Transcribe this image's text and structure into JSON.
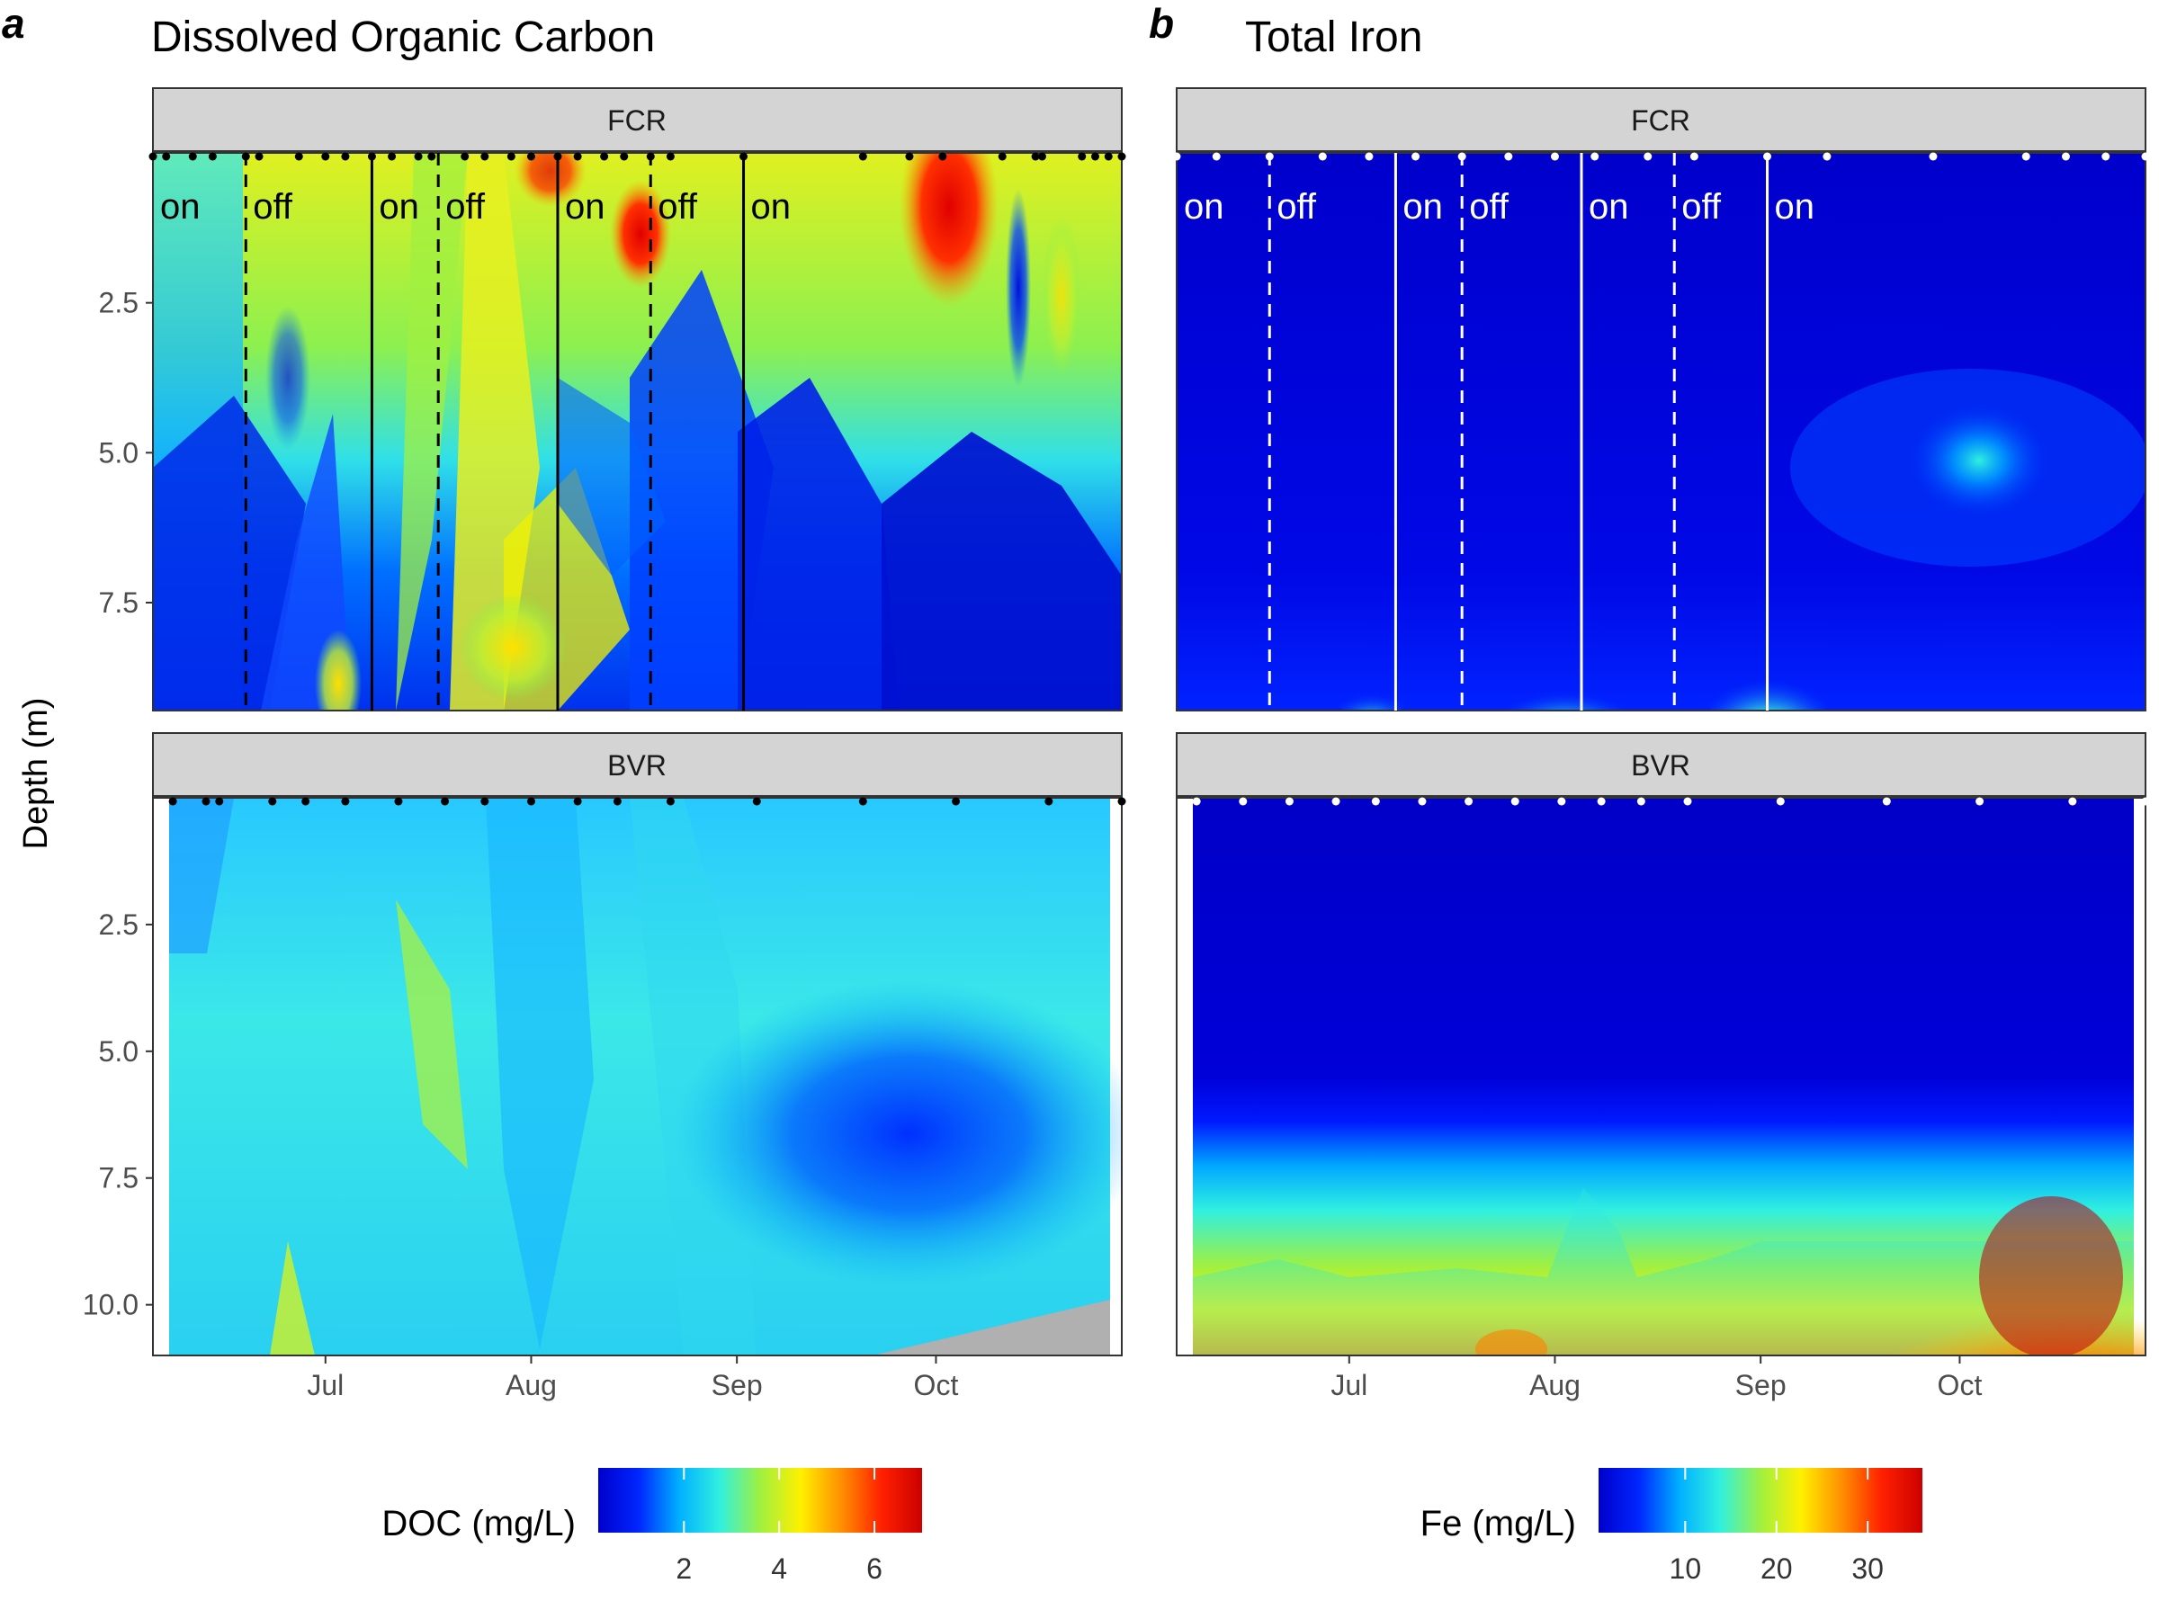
{
  "chart_data": [
    {
      "type": "heatmap",
      "panel_letter": "a",
      "title": "Dissolved Organic Carbon",
      "ylabel": "Depth (m)",
      "legend": {
        "title": "DOC (mg/L)",
        "ticks": [
          2,
          4,
          6
        ],
        "range": [
          0.2,
          7.0
        ],
        "position": "bottom"
      },
      "colors": [
        "#0000cc",
        "#0026ff",
        "#00b0ff",
        "#30f0e0",
        "#a0f040",
        "#fff000",
        "#ff9000",
        "#ff2000",
        "#cc0000"
      ],
      "x_axis": {
        "ticks": [
          "Jul",
          "Aug",
          "Sep",
          "Oct"
        ],
        "range": [
          "2019-06-05",
          "2019-10-29"
        ]
      },
      "facets": [
        {
          "name": "FCR",
          "ylim": [
            0,
            9.3
          ],
          "y_ticks": [
            2.5,
            5.0,
            7.5
          ],
          "sample_dates": [
            "2019-06-05",
            "2019-06-07",
            "2019-06-11",
            "2019-06-14",
            "2019-06-19",
            "2019-06-21",
            "2019-06-27",
            "2019-07-01",
            "2019-07-04",
            "2019-07-08",
            "2019-07-11",
            "2019-07-15",
            "2019-07-17",
            "2019-07-22",
            "2019-07-25",
            "2019-07-29",
            "2019-08-01",
            "2019-08-05",
            "2019-08-08",
            "2019-08-12",
            "2019-08-15",
            "2019-08-19",
            "2019-08-22",
            "2019-09-02",
            "2019-09-20",
            "2019-09-27",
            "2019-10-02",
            "2019-10-11",
            "2019-10-16",
            "2019-10-17",
            "2019-10-23",
            "2019-10-25",
            "2019-10-27",
            "2019-10-29"
          ],
          "oxygenation_events": [
            {
              "date": "2019-06-05",
              "label": "on",
              "line": "none"
            },
            {
              "date": "2019-06-19",
              "label": "off",
              "line": "dashed"
            },
            {
              "date": "2019-07-08",
              "label": "on",
              "line": "solid"
            },
            {
              "date": "2019-07-18",
              "label": "off",
              "line": "dashed"
            },
            {
              "date": "2019-08-05",
              "label": "on",
              "line": "solid"
            },
            {
              "date": "2019-08-19",
              "label": "off",
              "line": "dashed"
            },
            {
              "date": "2019-09-02",
              "label": "on",
              "line": "solid"
            }
          ]
        },
        {
          "name": "BVR",
          "ylim": [
            0,
            11.0
          ],
          "y_ticks": [
            2.5,
            5.0,
            7.5,
            10.0
          ],
          "sample_dates": [
            "2019-06-08",
            "2019-06-13",
            "2019-06-15",
            "2019-06-23",
            "2019-06-28",
            "2019-07-04",
            "2019-07-12",
            "2019-07-19",
            "2019-07-25",
            "2019-08-01",
            "2019-08-08",
            "2019-08-14",
            "2019-08-22",
            "2019-09-04",
            "2019-09-20",
            "2019-10-04",
            "2019-10-18",
            "2019-10-29"
          ],
          "oxygenation_events": []
        }
      ]
    },
    {
      "type": "heatmap",
      "panel_letter": "b",
      "title": "Total Iron",
      "ylabel": "",
      "legend": {
        "title": "Fe (mg/L)",
        "ticks": [
          10,
          20,
          30
        ],
        "range": [
          0.5,
          36.0
        ],
        "position": "bottom"
      },
      "colors": [
        "#0000cc",
        "#0026ff",
        "#00b0ff",
        "#30f0e0",
        "#a0f040",
        "#fff000",
        "#ff9000",
        "#ff2000",
        "#cc0000"
      ],
      "x_axis": {
        "ticks": [
          "Jul",
          "Aug",
          "Sep",
          "Oct"
        ],
        "range": [
          "2019-06-05",
          "2019-10-29"
        ]
      },
      "facets": [
        {
          "name": "FCR",
          "ylim": [
            0,
            9.3
          ],
          "y_ticks": [],
          "sample_dates": [
            "2019-06-05",
            "2019-06-11",
            "2019-06-19",
            "2019-06-27",
            "2019-07-04",
            "2019-07-11",
            "2019-07-18",
            "2019-07-25",
            "2019-08-01",
            "2019-08-07",
            "2019-08-15",
            "2019-08-22",
            "2019-09-02",
            "2019-09-11",
            "2019-09-27",
            "2019-10-11",
            "2019-10-17",
            "2019-10-23",
            "2019-10-29"
          ],
          "oxygenation_events": [
            {
              "date": "2019-06-05",
              "label": "on",
              "line": "none"
            },
            {
              "date": "2019-06-19",
              "label": "off",
              "line": "dashed"
            },
            {
              "date": "2019-07-08",
              "label": "on",
              "line": "solid"
            },
            {
              "date": "2019-07-18",
              "label": "off",
              "line": "dashed"
            },
            {
              "date": "2019-08-05",
              "label": "on",
              "line": "solid"
            },
            {
              "date": "2019-08-19",
              "label": "off",
              "line": "dashed"
            },
            {
              "date": "2019-09-02",
              "label": "on",
              "line": "solid"
            }
          ]
        },
        {
          "name": "BVR",
          "ylim": [
            0,
            11.0
          ],
          "y_ticks": [],
          "sample_dates": [
            "2019-06-08",
            "2019-06-15",
            "2019-06-22",
            "2019-06-29",
            "2019-07-05",
            "2019-07-12",
            "2019-07-19",
            "2019-07-26",
            "2019-08-02",
            "2019-08-08",
            "2019-08-14",
            "2019-08-21",
            "2019-09-04",
            "2019-09-20",
            "2019-10-04",
            "2019-10-18",
            "2019-10-29"
          ],
          "oxygenation_events": []
        }
      ]
    }
  ]
}
